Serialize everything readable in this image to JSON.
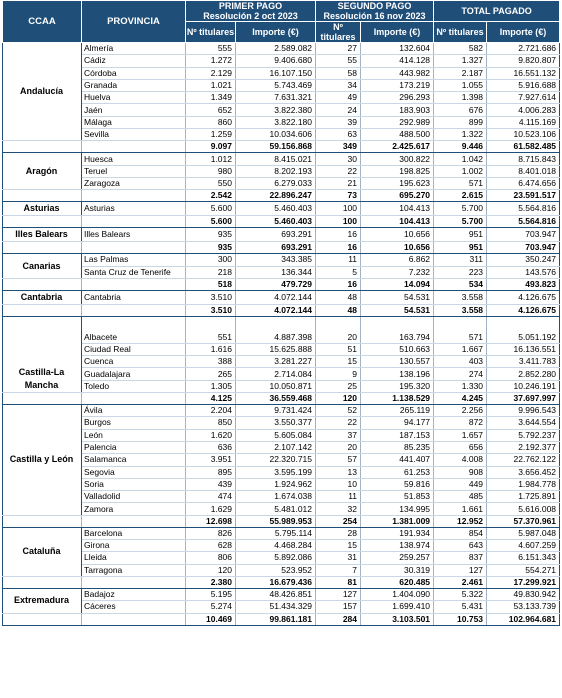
{
  "headers": {
    "ccaa": "CCAA",
    "provincia": "PROVINCIA",
    "primer_pago_title": "PRIMER PAGO",
    "primer_pago_sub": "Resolución 2 oct 2023",
    "segundo_pago_title": "SEGUNDO PAGO",
    "segundo_pago_sub": "Resolución 16 nov 2023",
    "total_pagado": "TOTAL PAGADO",
    "n_titulares": "Nº titulares",
    "importe": "Importe (€)"
  },
  "colors": {
    "header_bg": "#1f4e79",
    "header_text": "#ffffff",
    "grid": "#1f4e79"
  },
  "regions": [
    {
      "name": "Andalucía",
      "rows": [
        [
          "Almería",
          "555",
          "2.589.082",
          "27",
          "132.604",
          "582",
          "2.721.686"
        ],
        [
          "Cádiz",
          "1.272",
          "9.406.680",
          "55",
          "414.128",
          "1.327",
          "9.820.807"
        ],
        [
          "Córdoba",
          "2.129",
          "16.107.150",
          "58",
          "443.982",
          "2.187",
          "16.551.132"
        ],
        [
          "Granada",
          "1.021",
          "5.743.469",
          "34",
          "173.219",
          "1.055",
          "5.916.688"
        ],
        [
          "Huelva",
          "1.349",
          "7.631.321",
          "49",
          "296.293",
          "1.398",
          "7.927.614"
        ],
        [
          "Jaén",
          "652",
          "3.822.380",
          "24",
          "183.903",
          "676",
          "4.006.283"
        ],
        [
          "Málaga",
          "860",
          "3.822.180",
          "39",
          "292.989",
          "899",
          "4.115.169"
        ],
        [
          "Sevilla",
          "1.259",
          "10.034.606",
          "63",
          "488.500",
          "1.322",
          "10.523.106"
        ]
      ],
      "total": [
        "9.097",
        "59.156.868",
        "349",
        "2.425.617",
        "9.446",
        "61.582.485"
      ]
    },
    {
      "name": "Aragón",
      "rows": [
        [
          "Huesca",
          "1.012",
          "8.415.021",
          "30",
          "300.822",
          "1.042",
          "8.715.843"
        ],
        [
          "Teruel",
          "980",
          "8.202.193",
          "22",
          "198.825",
          "1.002",
          "8.401.018"
        ],
        [
          "Zaragoza",
          "550",
          "6.279.033",
          "21",
          "195.623",
          "571",
          "6.474.656"
        ]
      ],
      "total": [
        "2.542",
        "22.896.247",
        "73",
        "695.270",
        "2.615",
        "23.591.517"
      ]
    },
    {
      "name": "Asturias",
      "rows": [
        [
          "Asturias",
          "5.600",
          "5.460.403",
          "100",
          "104.413",
          "5.700",
          "5.564.816"
        ]
      ],
      "total": [
        "5.600",
        "5.460.403",
        "100",
        "104.413",
        "5.700",
        "5.564.816"
      ]
    },
    {
      "name": "Illes Balears",
      "rows": [
        [
          "Illes Balears",
          "935",
          "693.291",
          "16",
          "10.656",
          "951",
          "703.947"
        ]
      ],
      "total": [
        "935",
        "693.291",
        "16",
        "10.656",
        "951",
        "703.947"
      ]
    },
    {
      "name": "Canarias",
      "rows": [
        [
          "Las Palmas",
          "300",
          "343.385",
          "11",
          "6.862",
          "311",
          "350.247"
        ],
        [
          "Santa Cruz de Tenerife",
          "218",
          "136.344",
          "5",
          "7.232",
          "223",
          "143.576"
        ]
      ],
      "total": [
        "518",
        "479.729",
        "16",
        "14.094",
        "534",
        "493.823"
      ]
    },
    {
      "name": "Cantabria",
      "rows": [
        [
          "Cantabria",
          "3.510",
          "4.072.144",
          "48",
          "54.531",
          "3.558",
          "4.126.675"
        ]
      ],
      "total": [
        "3.510",
        "4.072.144",
        "48",
        "54.531",
        "3.558",
        "4.126.675"
      ]
    },
    {
      "name": "Castilla-La Mancha",
      "rows": [
        [
          "Albacete",
          "551",
          "4.887.398",
          "20",
          "163.794",
          "571",
          "5.051.192"
        ],
        [
          "Ciudad Real",
          "1.616",
          "15.625.888",
          "51",
          "510.663",
          "1.667",
          "16.136.551"
        ],
        [
          "Cuenca",
          "388",
          "3.281.227",
          "15",
          "130.557",
          "403",
          "3.411.783"
        ],
        [
          "Guadalajara",
          "265",
          "2.714.084",
          "9",
          "138.196",
          "274",
          "2.852.280"
        ],
        [
          "Toledo",
          "1.305",
          "10.050.871",
          "25",
          "195.320",
          "1.330",
          "10.246.191"
        ]
      ],
      "total": [
        "4.125",
        "36.559.468",
        "120",
        "1.138.529",
        "4.245",
        "37.697.997"
      ]
    },
    {
      "name": "Castilla y León",
      "rows": [
        [
          "Ávila",
          "2.204",
          "9.731.424",
          "52",
          "265.119",
          "2.256",
          "9.996.543"
        ],
        [
          "Burgos",
          "850",
          "3.550.377",
          "22",
          "94.177",
          "872",
          "3.644.554"
        ],
        [
          "León",
          "1.620",
          "5.605.084",
          "37",
          "187.153",
          "1.657",
          "5.792.237"
        ],
        [
          "Palencia",
          "636",
          "2.107.142",
          "20",
          "85.235",
          "656",
          "2.192.377"
        ],
        [
          "Salamanca",
          "3.951",
          "22.320.715",
          "57",
          "441.407",
          "4.008",
          "22.762.122"
        ],
        [
          "Segovia",
          "895",
          "3.595.199",
          "13",
          "61.253",
          "908",
          "3.656.452"
        ],
        [
          "Soria",
          "439",
          "1.924.962",
          "10",
          "59.816",
          "449",
          "1.984.778"
        ],
        [
          "Valladolid",
          "474",
          "1.674.038",
          "11",
          "51.853",
          "485",
          "1.725.891"
        ],
        [
          "Zamora",
          "1.629",
          "5.481.012",
          "32",
          "134.995",
          "1.661",
          "5.616.008"
        ]
      ],
      "total": [
        "12.698",
        "55.989.953",
        "254",
        "1.381.009",
        "12.952",
        "57.370.961"
      ]
    },
    {
      "name": "Cataluña",
      "rows": [
        [
          "Barcelona",
          "826",
          "5.795.114",
          "28",
          "191.934",
          "854",
          "5.987.048"
        ],
        [
          "Girona",
          "628",
          "4.468.284",
          "15",
          "138.974",
          "643",
          "4.607.259"
        ],
        [
          "Lleida",
          "806",
          "5.892.086",
          "31",
          "259.257",
          "837",
          "6.151.343"
        ],
        [
          "Tarragona",
          "120",
          "523.952",
          "7",
          "30.319",
          "127",
          "554.271"
        ]
      ],
      "total": [
        "2.380",
        "16.679.436",
        "81",
        "620.485",
        "2.461",
        "17.299.921"
      ]
    },
    {
      "name": "Extremadura",
      "rows": [
        [
          "Badajoz",
          "5.195",
          "48.426.851",
          "127",
          "1.404.090",
          "5.322",
          "49.830.942"
        ],
        [
          "Cáceres",
          "5.274",
          "51.434.329",
          "157",
          "1.699.410",
          "5.431",
          "53.133.739"
        ]
      ],
      "total": [
        "10.469",
        "99.861.181",
        "284",
        "3.103.501",
        "10.753",
        "102.964.681"
      ]
    }
  ]
}
